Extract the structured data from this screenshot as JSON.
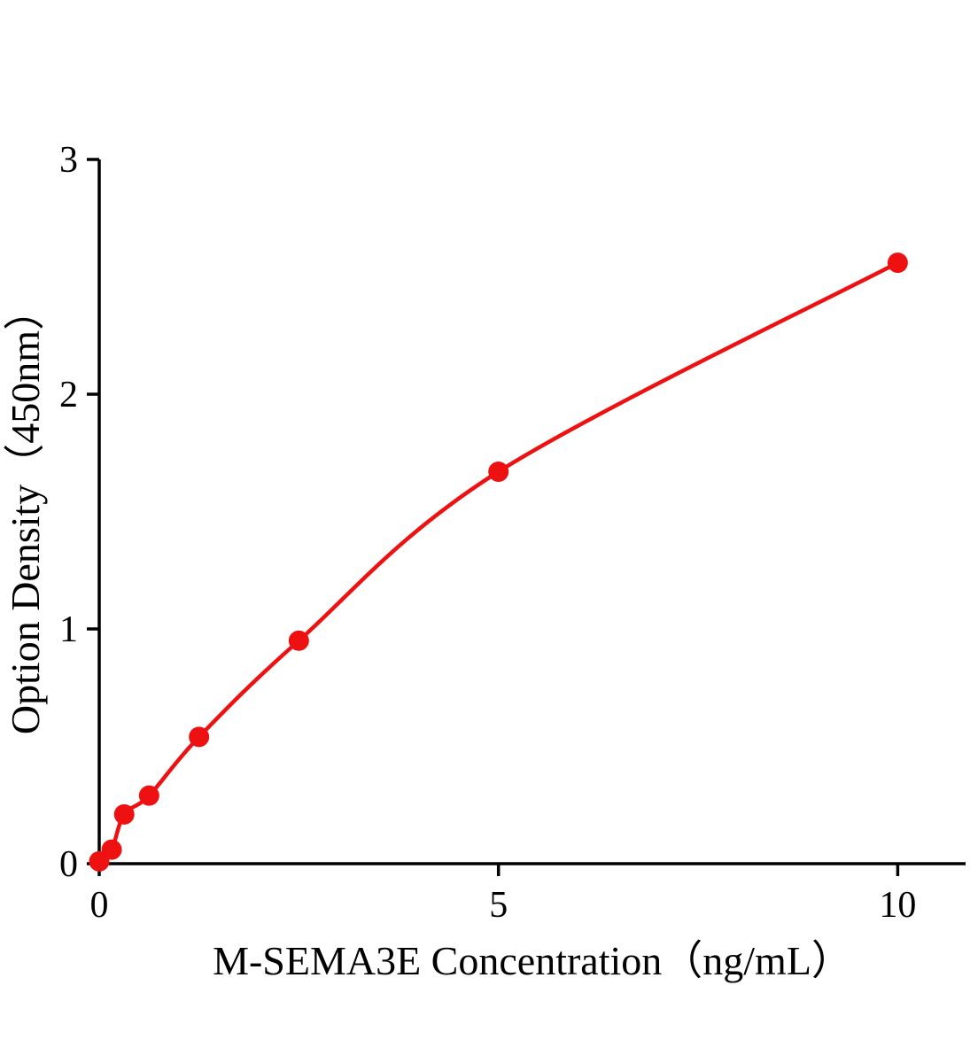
{
  "chart_data": {
    "type": "scatter",
    "title": "",
    "xlabel": "M-SEMA3E Concentration（ng/mL）",
    "ylabel": "Option Density（450nm）",
    "x": [
      0,
      0.156,
      0.313,
      0.625,
      1.25,
      2.5,
      5,
      10
    ],
    "y": [
      0.01,
      0.06,
      0.21,
      0.29,
      0.54,
      0.95,
      1.67,
      2.56
    ],
    "xlim": [
      0,
      10.85
    ],
    "ylim": [
      0,
      3
    ],
    "xticks": [
      0,
      5,
      10
    ],
    "yticks": [
      0,
      1,
      2,
      3
    ],
    "grid": false,
    "legend": false,
    "line_color": "#ee1111",
    "marker_color": "#ee1111",
    "axis_color": "#000000"
  }
}
